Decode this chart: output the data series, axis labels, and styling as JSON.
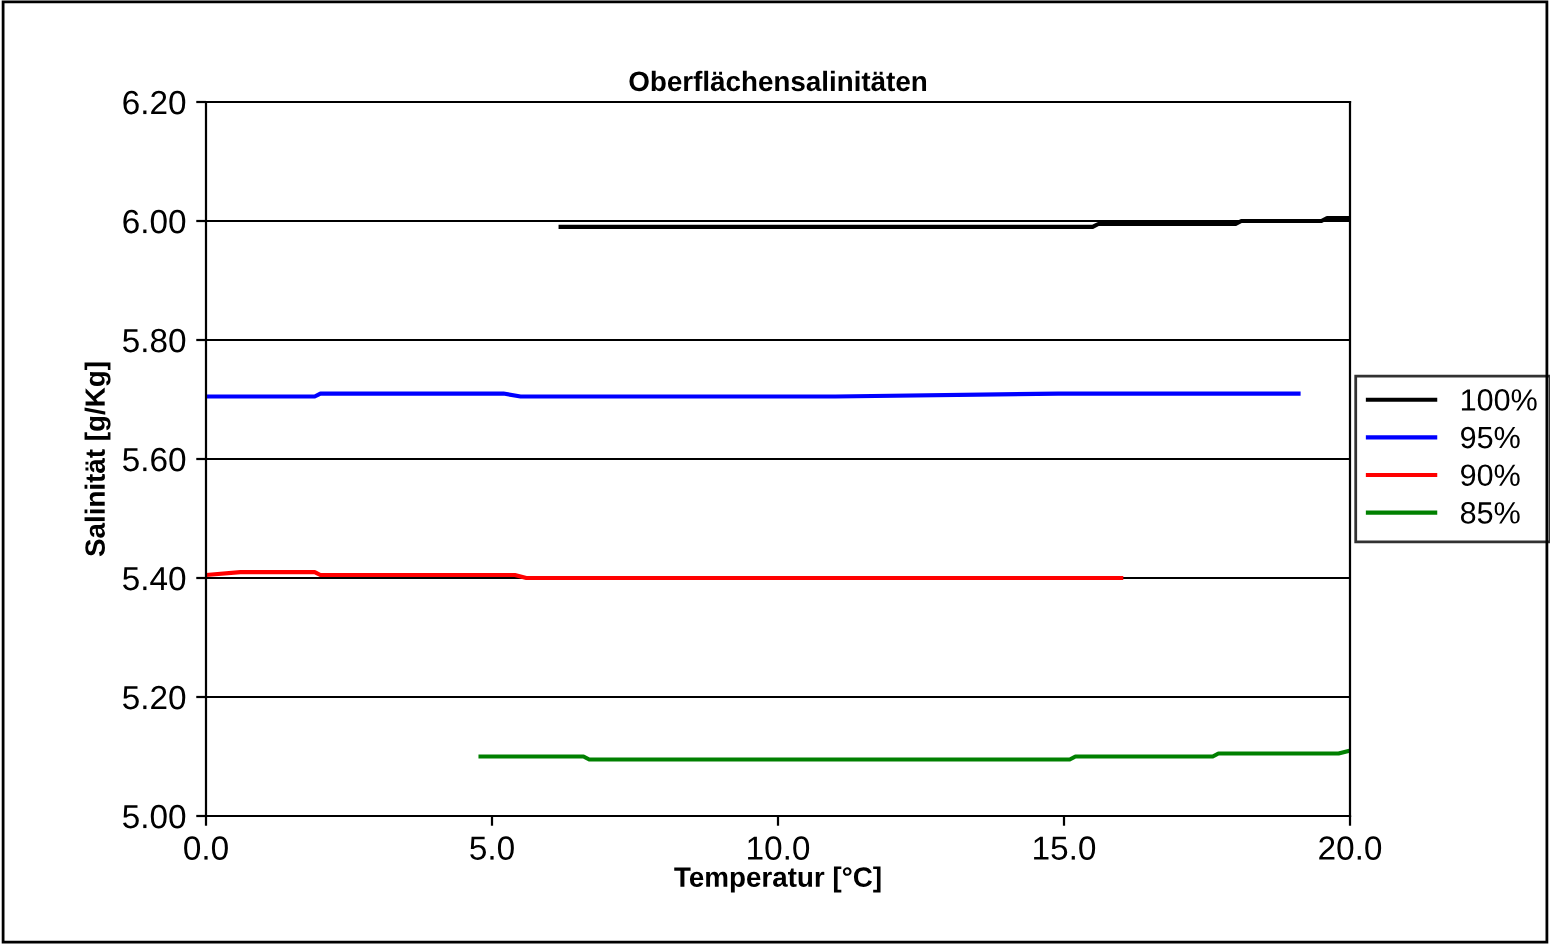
{
  "chart_data": {
    "type": "line",
    "title": "Oberflächensalinitäten",
    "xlabel": "Temperatur [°C]",
    "ylabel": "Salinität [g/Kg]",
    "xlim": [
      0,
      20
    ],
    "ylim": [
      5.0,
      6.2
    ],
    "xticks": [
      {
        "value": 0,
        "label": "0.0"
      },
      {
        "value": 5,
        "label": "5.0"
      },
      {
        "value": 10,
        "label": "10.0"
      },
      {
        "value": 15,
        "label": "15.0"
      },
      {
        "value": 20,
        "label": "20.0"
      }
    ],
    "yticks": [
      {
        "value": 5.0,
        "label": "5.00"
      },
      {
        "value": 5.2,
        "label": "5.20"
      },
      {
        "value": 5.4,
        "label": "5.40"
      },
      {
        "value": 5.6,
        "label": "5.60"
      },
      {
        "value": 5.8,
        "label": "5.80"
      },
      {
        "value": 6.0,
        "label": "6.00"
      },
      {
        "value": 6.2,
        "label": "6.20"
      }
    ],
    "grid": "y",
    "legend": "right",
    "marker": "none",
    "line_style": "solid",
    "series": [
      {
        "name": "100%",
        "color": "#000000",
        "x": [
          6.2,
          10,
          15.5,
          15.6,
          18,
          18.1,
          19.5,
          19.6,
          20
        ],
        "values": [
          5.99,
          5.99,
          5.99,
          5.995,
          5.995,
          6.0,
          6.0,
          6.005,
          6.005
        ]
      },
      {
        "name": "95%",
        "color": "#0000ff",
        "x": [
          0,
          1.9,
          2,
          5.2,
          5.5,
          6.6,
          11,
          14.9,
          15.2,
          19.1
        ],
        "values": [
          5.705,
          5.705,
          5.71,
          5.71,
          5.705,
          5.705,
          5.705,
          5.71,
          5.71,
          5.71
        ]
      },
      {
        "name": "90%",
        "color": "#ff0000",
        "x": [
          0,
          0.6,
          1.9,
          2,
          5.4,
          5.6,
          16
        ],
        "values": [
          5.405,
          5.41,
          5.41,
          5.405,
          5.405,
          5.4,
          5.4
        ]
      },
      {
        "name": "85%",
        "color": "#008000",
        "x": [
          4.8,
          6.6,
          6.7,
          15.1,
          15.2,
          17.6,
          17.7,
          19.8,
          20
        ],
        "values": [
          5.1,
          5.1,
          5.095,
          5.095,
          5.1,
          5.1,
          5.105,
          5.105,
          5.11
        ]
      }
    ]
  }
}
